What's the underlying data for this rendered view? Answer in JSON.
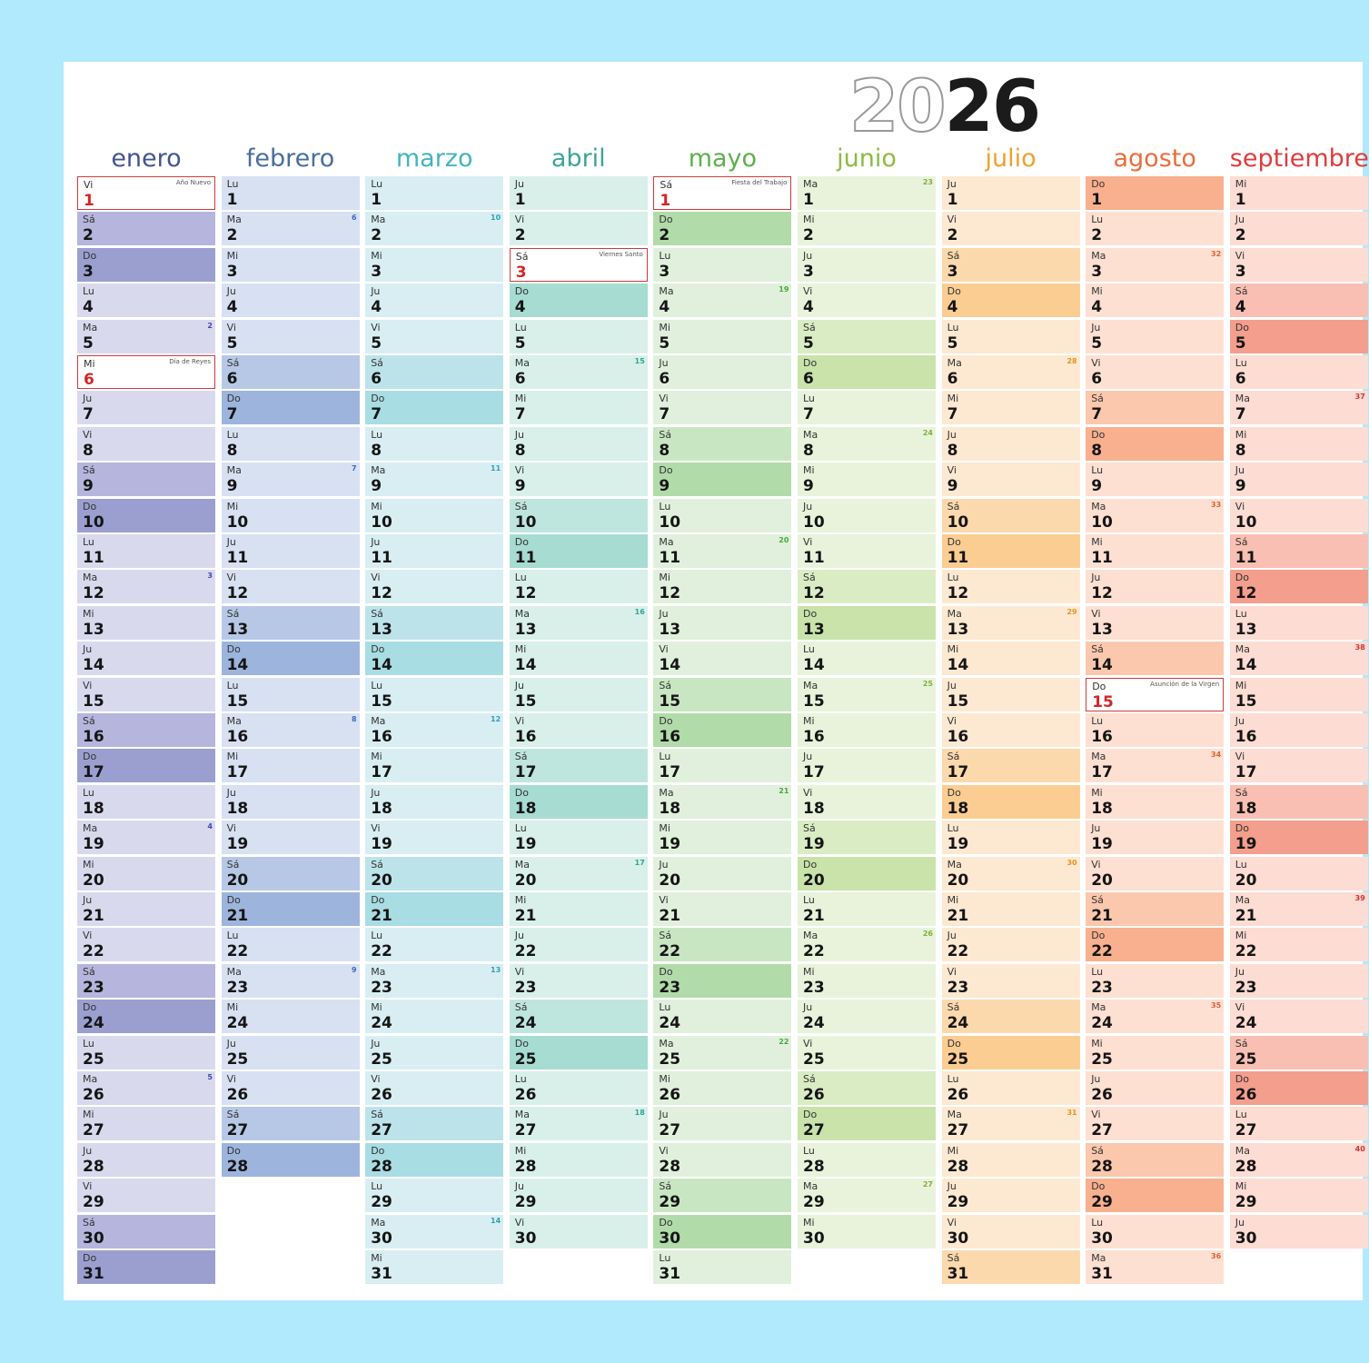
{
  "year": {
    "part1": "20",
    "part2": "26"
  },
  "months": [
    {
      "name": "enero",
      "color": "#44548f",
      "start": 4,
      "days": 31,
      "bg": {
        "weekday": "#d9d9ee",
        "sat": "#b5b5dd",
        "sun": "#9b9fcf"
      },
      "wkColor": "#3a4ab8",
      "weeks": {
        "5": "2",
        "12": "3",
        "19": "4",
        "26": "5"
      },
      "holidays": {
        "1": "Año Nuevo",
        "6": "Día de Reyes"
      }
    },
    {
      "name": "febrero",
      "color": "#4a6e9e",
      "start": 0,
      "days": 28,
      "bg": {
        "weekday": "#d7e1f2",
        "sat": "#b7c8e6",
        "sun": "#9db5dd"
      },
      "wkColor": "#3b6cc0",
      "weeks": {
        "2": "6",
        "9": "7",
        "16": "8",
        "23": "9"
      },
      "holidays": {}
    },
    {
      "name": "marzo",
      "color": "#44b3bf",
      "start": 0,
      "days": 31,
      "bg": {
        "weekday": "#d8eef2",
        "sat": "#bde3ea",
        "sun": "#a8dde4"
      },
      "wkColor": "#2ba3b5",
      "weeks": {
        "2": "10",
        "9": "11",
        "16": "12",
        "23": "13",
        "30": "14"
      },
      "holidays": {}
    },
    {
      "name": "abril",
      "color": "#3ea59a",
      "start": 3,
      "days": 30,
      "bg": {
        "weekday": "#d9f0ea",
        "sat": "#bfe6de",
        "sun": "#a6dcd2"
      },
      "wkColor": "#2fa494",
      "weeks": {
        "6": "15",
        "13": "16",
        "20": "17",
        "27": "18"
      },
      "holidays": {
        "3": "Viernes Santo"
      }
    },
    {
      "name": "mayo",
      "color": "#5cb04d",
      "start": 5,
      "days": 31,
      "bg": {
        "weekday": "#e0f0dc",
        "sat": "#c9e6c2",
        "sun": "#b2dbaa"
      },
      "wkColor": "#4aa93b",
      "weeks": {
        "4": "19",
        "11": "20",
        "18": "21",
        "25": "22"
      },
      "holidays": {
        "1": "Fiesta del Trabajo"
      }
    },
    {
      "name": "junio",
      "color": "#8dbb45",
      "start": 1,
      "days": 30,
      "bg": {
        "weekday": "#e9f3dc",
        "sat": "#daecc4",
        "sun": "#c9e3aa"
      },
      "wkColor": "#7cb23a",
      "weeks": {
        "1": "23",
        "8": "24",
        "15": "25",
        "22": "26",
        "29": "27"
      },
      "holidays": {}
    },
    {
      "name": "julio",
      "color": "#f0a032",
      "start": 3,
      "days": 31,
      "bg": {
        "weekday": "#fde9d1",
        "sat": "#fcd9ad",
        "sun": "#fbcd92"
      },
      "wkColor": "#e59523",
      "weeks": {
        "6": "28",
        "13": "29",
        "20": "30",
        "27": "31"
      },
      "holidays": {}
    },
    {
      "name": "agosto",
      "color": "#ec6d3b",
      "start": 6,
      "days": 31,
      "bg": {
        "weekday": "#fde0d2",
        "sat": "#fbc7ad",
        "sun": "#f8b08e"
      },
      "wkColor": "#e0622f",
      "weeks": {
        "3": "32",
        "10": "33",
        "17": "34",
        "24": "35",
        "31": "36"
      },
      "holidays": {
        "15": "Asunción de la Virgen"
      }
    },
    {
      "name": "septiembre",
      "color": "#e13c3c",
      "start": 2,
      "days": 30,
      "bg": {
        "weekday": "#fcdcd3",
        "sat": "#f9bfb2",
        "sun": "#f49e8d"
      },
      "wkColor": "#d63434",
      "weeks": {
        "7": "37",
        "14": "38",
        "21": "39",
        "28": "40"
      },
      "holidays": {}
    }
  ],
  "weekdays": [
    "Lu",
    "Ma",
    "Mi",
    "Ju",
    "Vi",
    "Sá",
    "Do"
  ]
}
